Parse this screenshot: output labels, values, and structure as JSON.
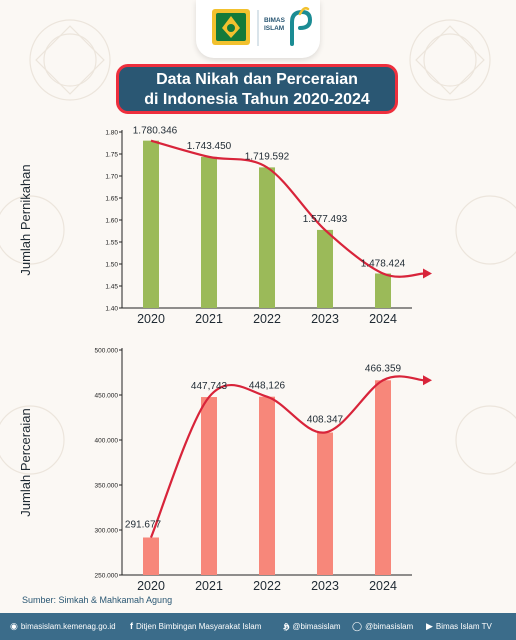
{
  "header": {
    "title_line1": "Data Nikah dan Perceraian",
    "title_line2": "di Indonesia Tahun 2020-2024",
    "bimas_logo_text": "BIMAS\nISLAM"
  },
  "chart_data": [
    {
      "type": "bar",
      "ylabel": "Jumlah Pernikahan",
      "categories": [
        "2020",
        "2021",
        "2022",
        "2023",
        "2024"
      ],
      "values": [
        1.780346,
        1.74345,
        1.719592,
        1.577493,
        1.478424
      ],
      "data_labels": [
        "1.780.346",
        "1.743.450",
        "1.719.592",
        "1.577.493",
        "1.478.424"
      ],
      "ylim": [
        1.4,
        1.8
      ],
      "yticks": [
        1.4,
        1.45,
        1.5,
        1.55,
        1.6,
        1.65,
        1.7,
        1.75,
        1.8
      ],
      "ytick_labels": [
        "1.40",
        "1.45",
        "1.50",
        "1.55",
        "1.60",
        "1.65",
        "1.70",
        "1.75",
        "1.80"
      ],
      "bar_color": "#9bba59",
      "line_color": "#d8243a",
      "trend_line": true,
      "grid": false
    },
    {
      "type": "bar",
      "ylabel": "Jumlah Perceraian",
      "categories": [
        "2020",
        "2021",
        "2022",
        "2023",
        "2024"
      ],
      "values": [
        291677,
        447743,
        448126,
        408347,
        466359
      ],
      "data_labels": [
        "291.677",
        "447,743",
        "448,126",
        "408.347",
        "466.359"
      ],
      "ylim": [
        250000,
        500000
      ],
      "yticks": [
        250000,
        300000,
        350000,
        400000,
        450000,
        500000
      ],
      "ytick_labels": [
        "250.000",
        "300.000",
        "350.000",
        "400.000",
        "450.000",
        "500.000"
      ],
      "bar_color": "#f7877a",
      "line_color": "#d8243a",
      "trend_line": true,
      "grid": false
    }
  ],
  "source": "Sumber: Simkah & Mahkamah Agung",
  "footer": {
    "items": [
      {
        "icon": "globe-icon",
        "label": "bimasislam.kemenag.go.id"
      },
      {
        "icon": "facebook-icon",
        "label": "Ditjen Bimbingan Masyarakat Islam"
      },
      {
        "icon": "x-icon",
        "label": "@bimasislam"
      },
      {
        "icon": "instagram-icon",
        "label": "@bimasislam"
      },
      {
        "icon": "youtube-icon",
        "label": "Bimas Islam TV"
      }
    ],
    "background": "#3b6c8a"
  },
  "colors": {
    "title_background": "#2a5773",
    "title_border": "#ee2f3d",
    "page_background": "#fbf8f4"
  }
}
